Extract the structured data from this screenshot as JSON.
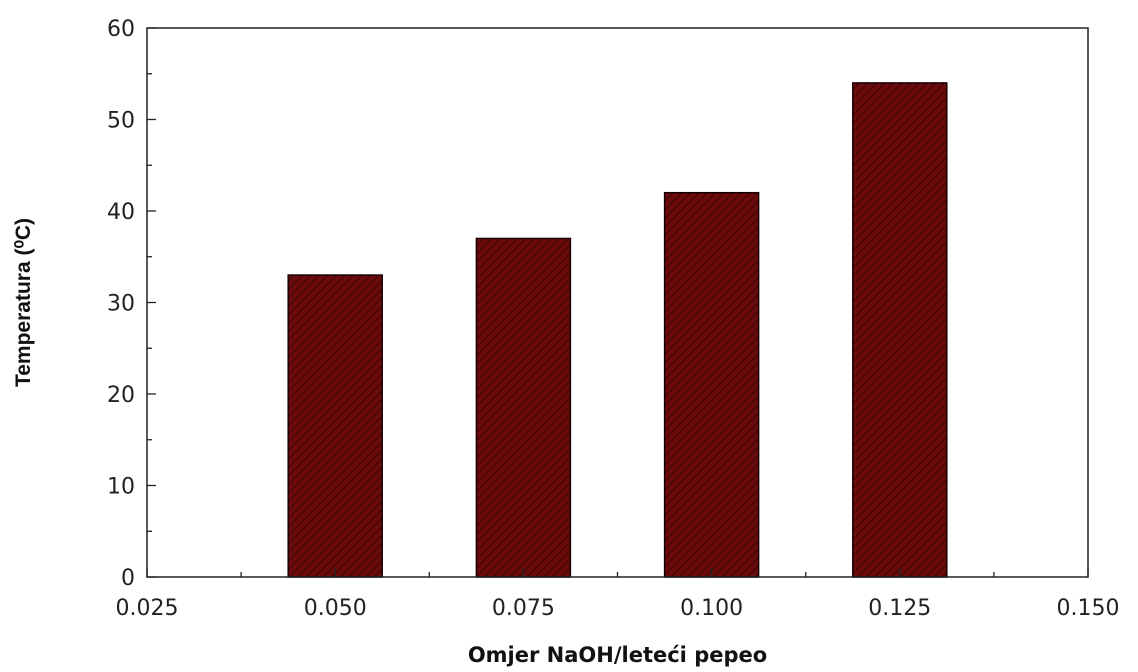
{
  "chart_data": {
    "type": "bar",
    "title": "",
    "xlabel": "Omjer NaOH/leteći pepeo",
    "ylabel": "Temperatura (⁰C)",
    "x": [
      0.05,
      0.075,
      0.1,
      0.125
    ],
    "values": [
      33,
      37,
      42,
      54
    ],
    "xlim": [
      0.025,
      0.15
    ],
    "ylim": [
      0,
      60
    ],
    "xticks": [
      "0.025",
      "0.050",
      "0.075",
      "0.100",
      "0.125",
      "0.150"
    ],
    "yticks": [
      "0",
      "10",
      "20",
      "30",
      "40",
      "50",
      "60"
    ],
    "bar_color": "#6b0a0a",
    "bar_pattern": "diagonal-hatch",
    "grid": false,
    "legend": "none"
  }
}
